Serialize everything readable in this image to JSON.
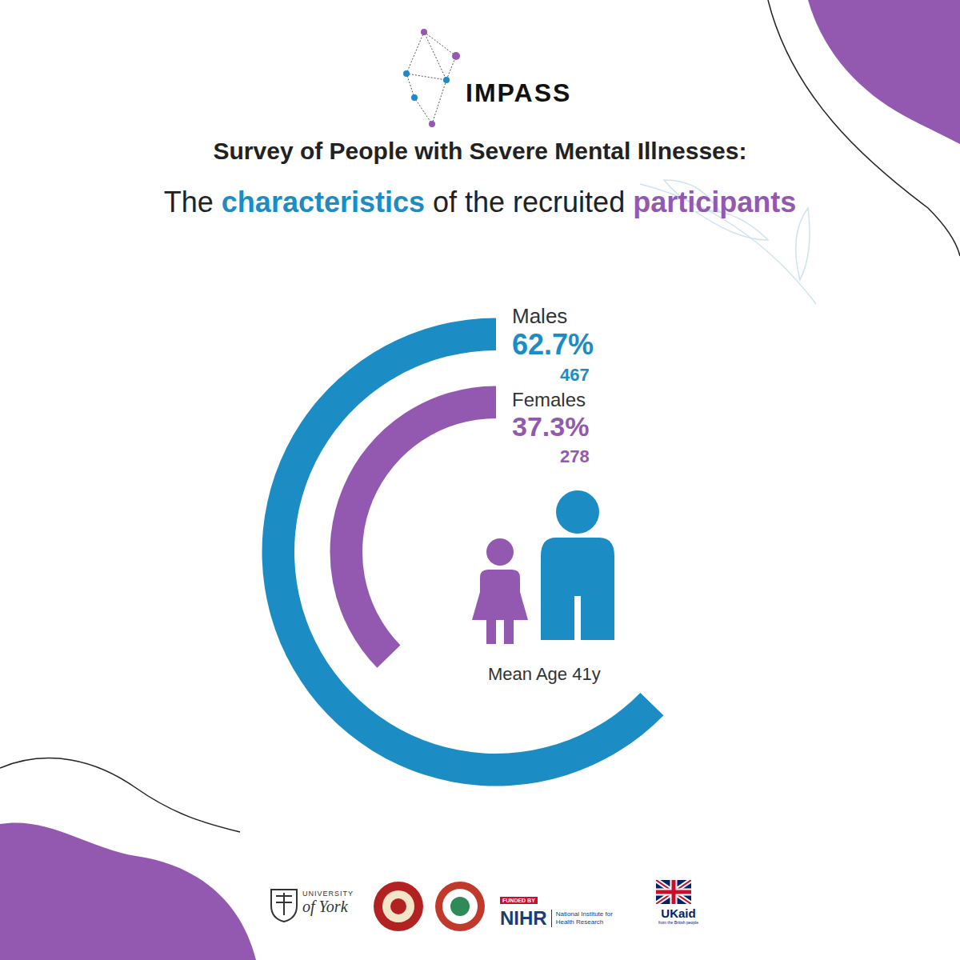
{
  "header": {
    "logo": "IMPASS"
  },
  "chart_data": {
    "type": "radial_bar",
    "title": "Survey of People with Severe Mental Illnesses:",
    "subtitle": [
      {
        "text": "The "
      },
      {
        "text": "characteristics",
        "color": "#1b8dc4"
      },
      {
        "text": " of the recruited "
      },
      {
        "text": "participants",
        "color": "#9359b0"
      }
    ],
    "categories": [
      "Males",
      "Females"
    ],
    "values": [
      62.7,
      37.3
    ],
    "value_labels": [
      "62.7%",
      "37.3%"
    ],
    "counts": [
      467,
      278
    ],
    "colors": [
      "#1b8dc4",
      "#9359b0"
    ],
    "ylim": [
      0,
      100
    ],
    "data_labels": true,
    "tick_labels": false,
    "annotation": "Mean Age 41y"
  },
  "footer": {
    "logos": [
      [
        "UNIVERSITY",
        "of York"
      ],
      [
        "FUNDED BY",
        "NIHR",
        "National Institute for Health Research"
      ],
      [
        "UKaid",
        "from the British people"
      ]
    ]
  }
}
